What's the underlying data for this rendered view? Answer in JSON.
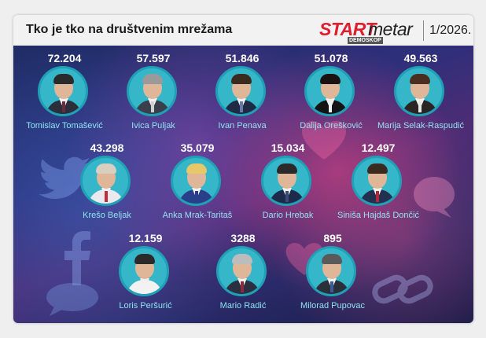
{
  "header": {
    "title": "Tko je tko na društvenim mrežama",
    "logo_start": "START",
    "logo_metar": "metar",
    "logo_sub": "DEMOSKOP",
    "date": "1/2026."
  },
  "colors": {
    "accent_red": "#e01e2d",
    "avatar_ring": "#35b6c9",
    "name_text": "#8fe3f1"
  },
  "people": [
    {
      "name": "Tomislav Tomašević",
      "value": "72.204"
    },
    {
      "name": "Ivica Puljak",
      "value": "57.597"
    },
    {
      "name": "Ivan Penava",
      "value": "51.846"
    },
    {
      "name": "Dalija Orešković",
      "value": "51.078"
    },
    {
      "name": "Marija Selak-Raspudić",
      "value": "49.563"
    },
    {
      "name": "Krešo Beljak",
      "value": "43.298"
    },
    {
      "name": "Anka Mrak-Taritaš",
      "value": "35.079"
    },
    {
      "name": "Dario Hrebak",
      "value": "15.034"
    },
    {
      "name": "Siniša Hajdaš Dončić",
      "value": "12.497"
    },
    {
      "name": "Loris Peršurić",
      "value": "12.159"
    },
    {
      "name": "Mario Radić",
      "value": "3288"
    },
    {
      "name": "Milorad Pupovac",
      "value": "895"
    }
  ]
}
